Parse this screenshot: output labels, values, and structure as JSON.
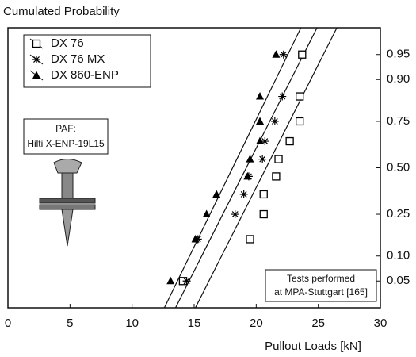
{
  "chart_data": {
    "type": "probability-scatter",
    "title": "Cumulated Probability",
    "x_label": "Pullout Loads [kN]",
    "xlim": [
      0,
      30
    ],
    "xticks": [
      0,
      5,
      10,
      15,
      20,
      25,
      30
    ],
    "ylim": [
      0.021,
      0.979
    ],
    "yscale": "probit",
    "yticks": [
      0.05,
      {
        "value": 0.1,
        "label": "0.10"
      },
      0.25,
      {
        "value": 0.5,
        "label": "0.50"
      },
      0.75,
      {
        "value": 0.9,
        "label": "0.90"
      },
      0.95
    ],
    "series": [
      {
        "name": "DX 76",
        "marker": "square",
        "color": "#000000",
        "x": [
          14.1,
          19.5,
          20.6,
          20.6,
          21.6,
          21.8,
          22.7,
          23.5,
          23.5,
          23.7
        ],
        "values": [
          0.05,
          0.15,
          0.25,
          0.35,
          0.45,
          0.55,
          0.65,
          0.75,
          0.85,
          0.95
        ]
      },
      {
        "name": "DX 76 MX",
        "marker": "asterisk",
        "color": "#000000",
        "x": [
          14.4,
          15.3,
          18.3,
          19.0,
          19.4,
          20.5,
          20.7,
          21.5,
          22.1,
          22.2
        ],
        "values": [
          0.05,
          0.15,
          0.25,
          0.35,
          0.45,
          0.55,
          0.65,
          0.75,
          0.85,
          0.95
        ]
      },
      {
        "name": "DX 860-ENP",
        "marker": "triangle",
        "color": "#000000",
        "x": [
          13.1,
          15.1,
          16.0,
          16.8,
          19.3,
          19.5,
          20.3,
          20.3,
          20.3,
          21.6
        ],
        "values": [
          0.05,
          0.15,
          0.25,
          0.35,
          0.45,
          0.55,
          0.65,
          0.75,
          0.85,
          0.95
        ]
      }
    ],
    "fit_lines": [
      {
        "x": [
          12.6,
          23.6
        ],
        "values": [
          0.021,
          0.979
        ]
      },
      {
        "x": [
          13.5,
          24.9
        ],
        "values": [
          0.021,
          0.979
        ]
      },
      {
        "x": [
          15.1,
          26.5
        ],
        "values": [
          0.021,
          0.979
        ]
      }
    ],
    "annotations": [
      [
        "PAF:",
        "Hilti X-ENP-19L15"
      ],
      [
        "Tests performed",
        "at MPA-Stuttgart [165]"
      ]
    ],
    "legend": "upper left"
  }
}
